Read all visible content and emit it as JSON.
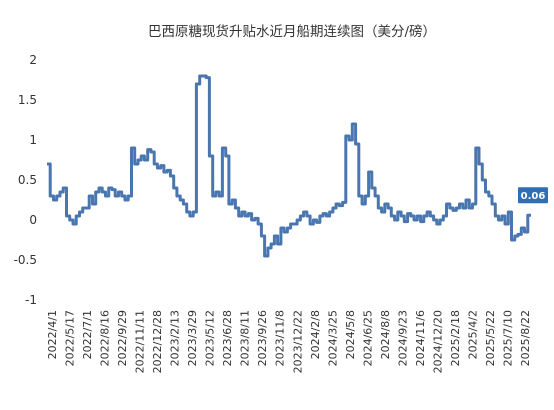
{
  "chart_data": {
    "type": "line",
    "title": "巴西原糖现货升贴水近月船期连续图（美分/磅）",
    "xlabel": "",
    "ylabel": "",
    "ylim": [
      -1,
      2
    ],
    "yticks": [
      "2",
      "1.5",
      "1",
      "0.5",
      "0",
      "-0.5",
      "-1"
    ],
    "xtick_labels": [
      "2022/4/1",
      "2022/5/17",
      "2022/7/1",
      "2022/8/16",
      "2022/9/29",
      "2022/11/11",
      "2022/12/28",
      "2023/2/13",
      "2023/3/29",
      "2023/5/12",
      "2023/6/28",
      "2023/8/11",
      "2023/9/26",
      "2023/11/8",
      "2023/12/22",
      "2024/2/8",
      "2024/3/25",
      "2024/5/8",
      "2024/6/25",
      "2024/8/8",
      "2024/9/23",
      "2024/11/6",
      "2024/12/20",
      "2025/2/18",
      "2025/4/2",
      "2025/5/22",
      "2025/7/10",
      "2025/8/22"
    ],
    "grid": false,
    "legend": "none",
    "line_color": "#4a76b0",
    "last_value_label": "0.06",
    "series": [
      {
        "values": [
          0.7,
          0.3,
          0.25,
          0.3,
          0.35,
          0.4,
          0.05,
          0.0,
          -0.05,
          0.05,
          0.1,
          0.15,
          0.15,
          0.3,
          0.2,
          0.35,
          0.4,
          0.35,
          0.3,
          0.4,
          0.38,
          0.3,
          0.35,
          0.3,
          0.25,
          0.3,
          0.9,
          0.7,
          0.75,
          0.8,
          0.75,
          0.88,
          0.85,
          0.7,
          0.65,
          0.68,
          0.6,
          0.62,
          0.55,
          0.4,
          0.3,
          0.25,
          0.2,
          0.1,
          0.05,
          0.1,
          1.7,
          1.8,
          1.8,
          1.78,
          0.8,
          0.3,
          0.35,
          0.3,
          0.9,
          0.8,
          0.2,
          0.25,
          0.15,
          0.05,
          0.1,
          0.05,
          0.08,
          0.0,
          0.02,
          -0.05,
          -0.2,
          -0.45,
          -0.35,
          -0.3,
          -0.2,
          -0.3,
          -0.1,
          -0.15,
          -0.1,
          -0.05,
          -0.05,
          0.0,
          0.05,
          0.1,
          0.05,
          -0.05,
          0.0,
          -0.03,
          0.05,
          0.08,
          0.05,
          0.1,
          0.15,
          0.2,
          0.18,
          0.22,
          1.05,
          1.0,
          1.2,
          0.95,
          0.3,
          0.2,
          0.3,
          0.6,
          0.4,
          0.3,
          0.15,
          0.1,
          0.2,
          0.15,
          0.05,
          0.0,
          0.1,
          0.05,
          -0.02,
          0.08,
          0.05,
          0.0,
          0.05,
          -0.02,
          0.05,
          0.1,
          0.05,
          0.0,
          -0.05,
          0.0,
          0.05,
          0.2,
          0.15,
          0.12,
          0.15,
          0.2,
          0.15,
          0.25,
          0.15,
          0.2,
          0.9,
          0.7,
          0.5,
          0.35,
          0.3,
          0.2,
          0.05,
          0.0,
          0.05,
          -0.05,
          0.1,
          -0.25,
          -0.2,
          -0.18,
          -0.1,
          -0.15,
          0.06
        ]
      }
    ]
  }
}
